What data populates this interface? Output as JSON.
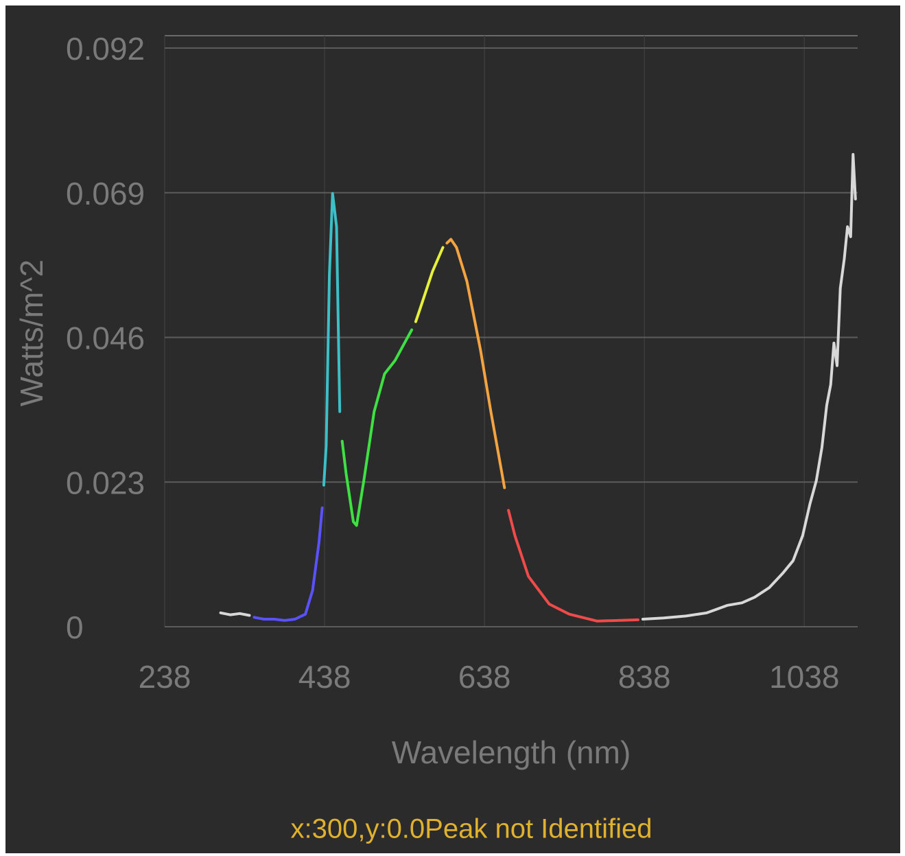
{
  "chart_data": {
    "type": "line",
    "x_label": "Wavelength (nm)",
    "y_label": "Watts/m^2",
    "xlim": [
      238,
      1103
    ],
    "xticks": [
      238,
      438,
      638,
      838,
      1038
    ],
    "ylim": [
      0,
      0.092
    ],
    "yticks": [
      0,
      0.023,
      0.046,
      0.069,
      0.092
    ],
    "grid": true,
    "status": "x:300,y:0.0Peak not Identified",
    "series": [
      {
        "color": "#d8d8d8",
        "x": [
          308,
          320,
          332,
          344
        ],
        "values": [
          0.0022,
          0.0019,
          0.0021,
          0.0018
        ]
      },
      {
        "color": "#5a52ff",
        "x": [
          350,
          362,
          375,
          388,
          401,
          414,
          423,
          431,
          435
        ],
        "values": [
          0.0015,
          0.0012,
          0.0012,
          0.001,
          0.0012,
          0.002,
          0.0058,
          0.0134,
          0.0189
        ]
      },
      {
        "color": "#3cbfc6",
        "x": [
          437,
          440,
          444,
          448,
          453,
          457
        ],
        "values": [
          0.0225,
          0.0287,
          0.056,
          0.0689,
          0.0636,
          0.0342
        ]
      },
      {
        "color": "#3ee043",
        "x": [
          460,
          465,
          474,
          478,
          487,
          500,
          513,
          526,
          538,
          547
        ],
        "values": [
          0.0295,
          0.0243,
          0.0167,
          0.0161,
          0.0232,
          0.0342,
          0.0402,
          0.0423,
          0.0451,
          0.0472
        ]
      },
      {
        "color": "#e6f03c",
        "x": [
          552,
          556,
          573,
          586
        ],
        "values": [
          0.0485,
          0.05,
          0.0565,
          0.0603
        ]
      },
      {
        "color": "#f4a341",
        "x": [
          591,
          596,
          603,
          616,
          633,
          646,
          663
        ],
        "values": [
          0.061,
          0.0616,
          0.0603,
          0.0549,
          0.044,
          0.0342,
          0.0221
        ]
      },
      {
        "color": "#f04a4a",
        "x": [
          668,
          676,
          693,
          719,
          744,
          779,
          830
        ],
        "values": [
          0.0185,
          0.0145,
          0.008,
          0.0036,
          0.002,
          0.0009,
          0.0011
        ]
      },
      {
        "color": "#d8d8d8",
        "x": [
          836,
          862,
          890,
          916,
          942,
          960,
          976,
          994,
          1011,
          1024,
          1036,
          1045,
          1053,
          1060,
          1066,
          1071,
          1075,
          1079,
          1083,
          1088,
          1092,
          1096,
          1099,
          1102
        ],
        "values": [
          0.0012,
          0.0014,
          0.0017,
          0.0022,
          0.0034,
          0.0038,
          0.0047,
          0.0062,
          0.0085,
          0.0105,
          0.0145,
          0.0195,
          0.0232,
          0.0285,
          0.0352,
          0.0385,
          0.0451,
          0.0415,
          0.0538,
          0.0585,
          0.0636,
          0.062,
          0.0751,
          0.068
        ]
      }
    ]
  }
}
